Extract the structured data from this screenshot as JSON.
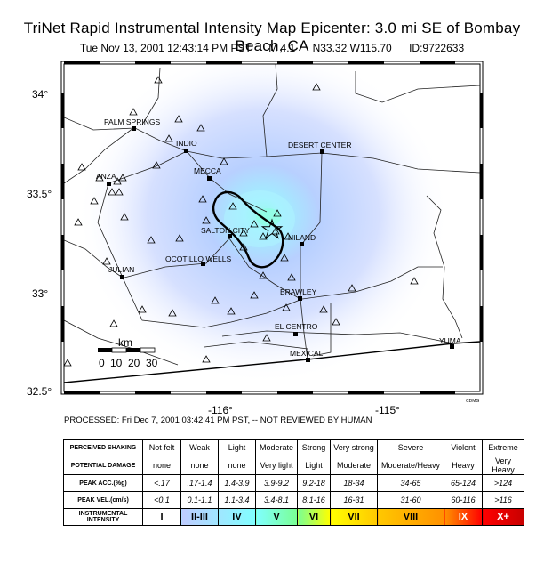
{
  "title": "TriNet Rapid Instrumental Intensity Map Epicenter: 3.0 mi SE of Bombay Beach, CA",
  "subtitle": {
    "datetime": "Tue Nov 13, 2001 12:43:14 PM PST",
    "magnitude": "M 4.1",
    "coords": "N33.32 W115.70",
    "event_id": "ID:9722633"
  },
  "axis": {
    "lat_ticks": [
      "34°",
      "33.5°",
      "33°",
      "32.5°"
    ],
    "lon_ticks": [
      "-116°",
      "-115°"
    ]
  },
  "places": [
    {
      "name": "PALM SPRINGS"
    },
    {
      "name": "INDIO"
    },
    {
      "name": "DESERT CENTER"
    },
    {
      "name": "ANZA"
    },
    {
      "name": "MECCA"
    },
    {
      "name": "SALTON CITY"
    },
    {
      "name": "NILAND"
    },
    {
      "name": "OCOTILLO WELLS"
    },
    {
      "name": "JULIAN"
    },
    {
      "name": "BRAWLEY"
    },
    {
      "name": "EL CENTRO"
    },
    {
      "name": "MEXICALI"
    },
    {
      "name": "YUMA"
    }
  ],
  "scale_bar": {
    "unit": "km",
    "ticks": [
      "0",
      "10",
      "20",
      "30"
    ]
  },
  "credit": "CDMG",
  "processed": "PROCESSED: Fri Dec 7, 2001 03:42:41 PM PST, -- NOT REVIEWED BY HUMAN",
  "legend": {
    "rows": [
      {
        "key": "perceived",
        "label": "PERCEIVED SHAKING",
        "values": [
          "Not felt",
          "Weak",
          "Light",
          "Moderate",
          "Strong",
          "Very strong",
          "Severe",
          "Violent",
          "Extreme"
        ]
      },
      {
        "key": "damage",
        "label": "POTENTIAL DAMAGE",
        "values": [
          "none",
          "none",
          "none",
          "Very light",
          "Light",
          "Moderate",
          "Moderate/Heavy",
          "Heavy",
          "Very Heavy"
        ]
      },
      {
        "key": "acc",
        "label": "PEAK ACC.(%g)",
        "values": [
          "<.17",
          ".17-1.4",
          "1.4-3.9",
          "3.9-9.2",
          "9.2-18",
          "18-34",
          "34-65",
          "65-124",
          ">124"
        ]
      },
      {
        "key": "vel",
        "label": "PEAK VEL.(cm/s)",
        "values": [
          "<0.1",
          "0.1-1.1",
          "1.1-3.4",
          "3.4-8.1",
          "8.1-16",
          "16-31",
          "31-60",
          "60-116",
          ">116"
        ]
      },
      {
        "key": "intensity",
        "label": "INSTRUMENTAL INTENSITY",
        "values": [
          "I",
          "II-III",
          "IV",
          "V",
          "VI",
          "VII",
          "VIII",
          "IX",
          "X+"
        ]
      }
    ],
    "intensity_colors": [
      "#ffffff",
      "#bfccff",
      "#a0e6ff",
      "#80ffff",
      "#7aff93",
      "#ffff00",
      "#ffc800",
      "#ff9100",
      "#ff0000",
      "#c80000"
    ]
  }
}
